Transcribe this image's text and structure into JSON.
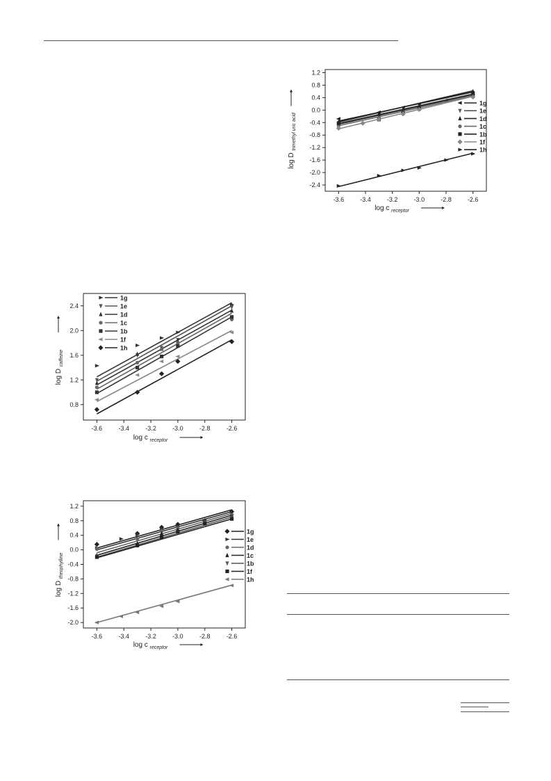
{
  "chart_data": [
    {
      "id": "methyl_uric",
      "type": "scatter",
      "xlabel_base": "log c",
      "xlabel_sub": "receptor",
      "ylabel_base": "log D",
      "ylabel_sub": "trimethyl uric acid",
      "xlim": [
        -3.7,
        -2.5
      ],
      "ylim": [
        -2.6,
        1.3
      ],
      "xticks": [
        -3.6,
        -3.4,
        -3.2,
        -3.0,
        -2.8,
        -2.6
      ],
      "xtick_labels": [
        "-3.6",
        "-3.4",
        "-3.2",
        "-3.0",
        "-2.8",
        "-2.6"
      ],
      "yticks": [
        -2.4,
        -2.0,
        -1.6,
        -1.2,
        -0.8,
        -0.4,
        0.0,
        0.4,
        0.8,
        1.2
      ],
      "ytick_labels": [
        "-2.4",
        "-2.0",
        "-1.6",
        "-1.2",
        "-0.8",
        "-0.4",
        "0.0",
        "0.4",
        "0.8",
        "1.2"
      ],
      "legend_position": "right",
      "series": [
        {
          "name": "1g",
          "marker": "tri-left",
          "color": "#222222",
          "x": [
            -3.6,
            -3.3,
            -3.12,
            -3.0,
            -2.8,
            -2.6
          ],
          "y": [
            -0.28,
            -0.07,
            0.09,
            0.19,
            0.32,
            0.55
          ],
          "fit": [
            [
              -3.6,
              -0.35
            ],
            [
              -2.6,
              0.58
            ]
          ]
        },
        {
          "name": "1e",
          "marker": "tri-down",
          "color": "#555555",
          "x": [
            -3.6,
            -3.3,
            -3.12,
            -3.0,
            -2.6
          ],
          "y": [
            -0.45,
            -0.2,
            -0.05,
            0.05,
            0.5
          ],
          "fit": [
            [
              -3.6,
              -0.42
            ],
            [
              -2.6,
              0.52
            ]
          ]
        },
        {
          "name": "1d",
          "marker": "tri-up",
          "color": "#222222",
          "x": [
            -3.6,
            -3.3,
            -3.12,
            -3.0,
            -2.6
          ],
          "y": [
            -0.38,
            -0.12,
            0.02,
            0.12,
            0.6
          ],
          "fit": [
            [
              -3.6,
              -0.38
            ],
            [
              -2.6,
              0.62
            ]
          ]
        },
        {
          "name": "1c",
          "marker": "circle",
          "color": "#666666",
          "x": [
            -3.6,
            -3.3,
            -3.12,
            -3.0,
            -2.6
          ],
          "y": [
            -0.5,
            -0.25,
            -0.08,
            0.02,
            0.45
          ],
          "fit": [
            [
              -3.6,
              -0.5
            ],
            [
              -2.6,
              0.46
            ]
          ]
        },
        {
          "name": "1b",
          "marker": "square",
          "color": "#222222",
          "x": [
            -3.6,
            -3.3,
            -3.12,
            -3.0,
            -2.6
          ],
          "y": [
            -0.42,
            -0.3,
            -0.1,
            0.05,
            0.48
          ],
          "fit": [
            [
              -3.6,
              -0.45
            ],
            [
              -2.6,
              0.5
            ]
          ]
        },
        {
          "name": "1f",
          "marker": "diamond",
          "color": "#888888",
          "x": [
            -3.6,
            -3.42,
            -3.3,
            -3.12,
            -3.0,
            -2.6
          ],
          "y": [
            -0.58,
            -0.42,
            -0.3,
            -0.12,
            0.02,
            0.42
          ],
          "fit": [
            [
              -3.6,
              -0.6
            ],
            [
              -2.6,
              0.44
            ]
          ]
        },
        {
          "name": "1h",
          "marker": "tri-right",
          "color": "#222222",
          "x": [
            -3.6,
            -3.3,
            -3.12,
            -3.0,
            -2.8,
            -2.6
          ],
          "y": [
            -2.43,
            -2.1,
            -1.93,
            -1.85,
            -1.6,
            -1.4
          ],
          "fit": [
            [
              -3.6,
              -2.45
            ],
            [
              -2.6,
              -1.38
            ]
          ]
        }
      ]
    },
    {
      "id": "caffeine",
      "type": "scatter",
      "xlabel_base": "log c",
      "xlabel_sub": "receptor",
      "ylabel_base": "log D",
      "ylabel_sub": "caffeine",
      "xlim": [
        -3.7,
        -2.5
      ],
      "ylim": [
        0.55,
        2.6
      ],
      "xticks": [
        -3.6,
        -3.4,
        -3.2,
        -3.0,
        -2.8,
        -2.6
      ],
      "xtick_labels": [
        "-3.6",
        "-3.4",
        "-3.2",
        "-3.0",
        "-2.8",
        "-2.6"
      ],
      "yticks": [
        0.8,
        1.2,
        1.6,
        2.0,
        2.4
      ],
      "ytick_labels": [
        "0.8",
        "1.2",
        "1.6",
        "2.0",
        "2.4"
      ],
      "legend_position": "top-left",
      "series": [
        {
          "name": "1g",
          "marker": "tri-right",
          "color": "#333333",
          "x": [
            -3.6,
            -3.3,
            -3.12,
            -3.0,
            -2.6
          ],
          "y": [
            1.43,
            1.76,
            1.88,
            1.97,
            2.42
          ],
          "fit": [
            [
              -3.6,
              1.25
            ],
            [
              -2.6,
              2.45
            ]
          ]
        },
        {
          "name": "1e",
          "marker": "tri-down",
          "color": "#555555",
          "x": [
            -3.6,
            -3.3,
            -3.12,
            -3.0,
            -2.6
          ],
          "y": [
            1.2,
            1.6,
            1.72,
            1.85,
            2.38
          ],
          "fit": [
            [
              -3.6,
              1.18
            ],
            [
              -2.6,
              2.4
            ]
          ]
        },
        {
          "name": "1d",
          "marker": "tri-up",
          "color": "#333333",
          "x": [
            -3.6,
            -3.3,
            -3.12,
            -3.0,
            -2.6
          ],
          "y": [
            1.15,
            1.62,
            1.7,
            1.83,
            2.32
          ],
          "fit": [
            [
              -3.6,
              1.12
            ],
            [
              -2.6,
              2.33
            ]
          ]
        },
        {
          "name": "1c",
          "marker": "circle",
          "color": "#666666",
          "x": [
            -3.6,
            -3.3,
            -3.12,
            -3.0,
            -2.6
          ],
          "y": [
            1.08,
            1.48,
            1.7,
            1.8,
            2.18
          ],
          "fit": [
            [
              -3.6,
              1.05
            ],
            [
              -2.6,
              2.28
            ]
          ]
        },
        {
          "name": "1b",
          "marker": "square",
          "color": "#333333",
          "x": [
            -3.6,
            -3.3,
            -3.12,
            -3.0,
            -2.6
          ],
          "y": [
            1.0,
            1.4,
            1.58,
            1.75,
            2.22
          ],
          "fit": [
            [
              -3.6,
              0.98
            ],
            [
              -2.6,
              2.22
            ]
          ]
        },
        {
          "name": "1f",
          "marker": "tri-left",
          "color": "#888888",
          "x": [
            -3.6,
            -3.3,
            -3.12,
            -3.0,
            -2.6
          ],
          "y": [
            0.88,
            1.28,
            1.5,
            1.58,
            1.97
          ],
          "fit": [
            [
              -3.6,
              0.85
            ],
            [
              -2.6,
              2.0
            ]
          ]
        },
        {
          "name": "1h",
          "marker": "diamond",
          "color": "#222222",
          "x": [
            -3.6,
            -3.3,
            -3.12,
            -3.0,
            -2.6
          ],
          "y": [
            0.72,
            1.0,
            1.3,
            1.5,
            1.82
          ],
          "fit": [
            [
              -3.6,
              0.65
            ],
            [
              -2.6,
              1.85
            ]
          ]
        }
      ]
    },
    {
      "id": "theophylline",
      "type": "scatter",
      "xlabel_base": "log c",
      "xlabel_sub": "receptor",
      "ylabel_base": "log D",
      "ylabel_sub": "theophylline",
      "xlim": [
        -3.7,
        -2.5
      ],
      "ylim": [
        -2.15,
        1.35
      ],
      "xticks": [
        -3.6,
        -3.4,
        -3.2,
        -3.0,
        -2.8,
        -2.6
      ],
      "xtick_labels": [
        "-3.6",
        "-3.4",
        "-3.2",
        "-3.0",
        "-2.8",
        "-2.6"
      ],
      "yticks": [
        -2.0,
        -1.6,
        -1.2,
        -0.8,
        -0.4,
        0.0,
        0.4,
        0.8,
        1.2
      ],
      "ytick_labels": [
        "-2.0",
        "-1.6",
        "-1.2",
        "-0.8",
        "-0.4",
        "0.0",
        "0.4",
        "0.8",
        "1.2"
      ],
      "legend_position": "right",
      "series": [
        {
          "name": "1g",
          "marker": "diamond",
          "color": "#222222",
          "x": [
            -3.6,
            -3.3,
            -3.12,
            -3.0,
            -2.8,
            -2.6
          ],
          "y": [
            0.15,
            0.45,
            0.62,
            0.7,
            0.8,
            1.05
          ],
          "fit": [
            [
              -3.6,
              0.05
            ],
            [
              -2.6,
              1.1
            ]
          ]
        },
        {
          "name": "1e",
          "marker": "tri-right",
          "color": "#333333",
          "x": [
            -3.6,
            -3.42,
            -3.3,
            -3.12,
            -3.0,
            -2.6
          ],
          "y": [
            0.05,
            0.3,
            0.42,
            0.58,
            0.65,
            0.98
          ],
          "fit": [
            [
              -3.6,
              0.0
            ],
            [
              -2.6,
              1.05
            ]
          ]
        },
        {
          "name": "1d",
          "marker": "circle",
          "color": "#666666",
          "x": [
            -3.6,
            -3.3,
            -3.12,
            -3.0,
            -2.8,
            -2.6
          ],
          "y": [
            0.02,
            0.3,
            0.52,
            0.6,
            0.75,
            0.95
          ],
          "fit": [
            [
              -3.6,
              -0.08
            ],
            [
              -2.6,
              1.0
            ]
          ]
        },
        {
          "name": "1c",
          "marker": "tri-up",
          "color": "#222222",
          "x": [
            -3.6,
            -3.3,
            -3.12,
            -3.0,
            -2.6
          ],
          "y": [
            -0.15,
            0.18,
            0.45,
            0.55,
            0.9
          ],
          "fit": [
            [
              -3.6,
              -0.15
            ],
            [
              -2.6,
              0.95
            ]
          ]
        },
        {
          "name": "1b",
          "marker": "tri-down",
          "color": "#555555",
          "x": [
            -3.6,
            -3.3,
            -3.12,
            -3.0,
            -2.8,
            -2.6
          ],
          "y": [
            -0.18,
            0.12,
            0.35,
            0.48,
            0.75,
            0.88
          ],
          "fit": [
            [
              -3.6,
              -0.2
            ],
            [
              -2.6,
              0.9
            ]
          ]
        },
        {
          "name": "1f",
          "marker": "square",
          "color": "#222222",
          "x": [
            -3.6,
            -3.3,
            -3.12,
            -3.0,
            -2.8,
            -2.6
          ],
          "y": [
            -0.2,
            0.12,
            0.35,
            0.5,
            0.72,
            0.85
          ],
          "fit": [
            [
              -3.6,
              -0.22
            ],
            [
              -2.6,
              0.85
            ]
          ]
        },
        {
          "name": "1h",
          "marker": "tri-left",
          "color": "#777777",
          "x": [
            -3.6,
            -3.42,
            -3.3,
            -3.12,
            -3.0,
            -2.6
          ],
          "y": [
            -2.0,
            -1.83,
            -1.72,
            -1.55,
            -1.42,
            -0.98
          ],
          "fit": [
            [
              -3.6,
              -2.0
            ],
            [
              -2.6,
              -0.97
            ]
          ]
        }
      ]
    }
  ]
}
